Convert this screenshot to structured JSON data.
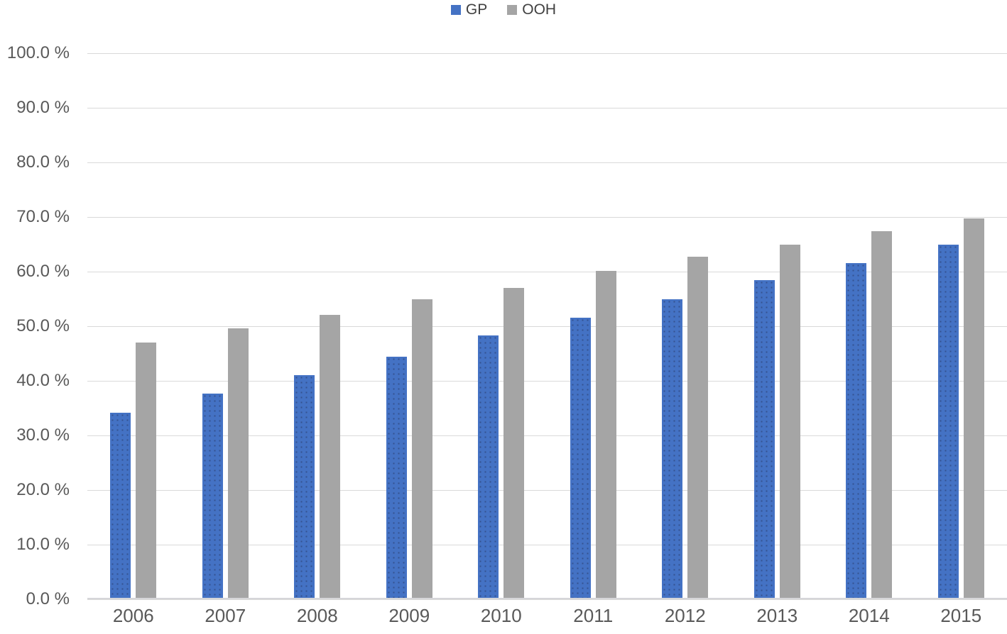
{
  "legend": {
    "items": [
      {
        "label": "GP",
        "color": "#4472c4"
      },
      {
        "label": "OOH",
        "color": "#a5a5a5"
      }
    ],
    "position": "top-center"
  },
  "chart_data": {
    "type": "bar",
    "title": "",
    "xlabel": "",
    "ylabel": "",
    "categories": [
      "2006",
      "2007",
      "2008",
      "2009",
      "2010",
      "2011",
      "2012",
      "2013",
      "2014",
      "2015"
    ],
    "series": [
      {
        "name": "GP",
        "color": "#4472c4",
        "values": [
          34.1,
          37.6,
          41.1,
          44.4,
          48.3,
          51.6,
          54.9,
          58.5,
          61.5,
          65.0
        ]
      },
      {
        "name": "OOH",
        "color": "#a5a5a5",
        "values": [
          47.0,
          49.6,
          52.1,
          54.9,
          57.0,
          60.1,
          62.7,
          65.0,
          67.4,
          69.7
        ]
      }
    ],
    "ylim": [
      0,
      100
    ],
    "ytick_step": 10,
    "yticks": [
      "0.0 %",
      "10.0 %",
      "20.0 %",
      "30.0 %",
      "40.0 %",
      "50.0 %",
      "60.0 %",
      "70.0 %",
      "80.0 %",
      "90.0 %",
      "100.0 %"
    ],
    "grid": true,
    "gridline_color": "#d9d9d9",
    "axis_line_color": "#d6d6d9",
    "tick_text_color": "#595959",
    "legend_position": "top-center"
  }
}
